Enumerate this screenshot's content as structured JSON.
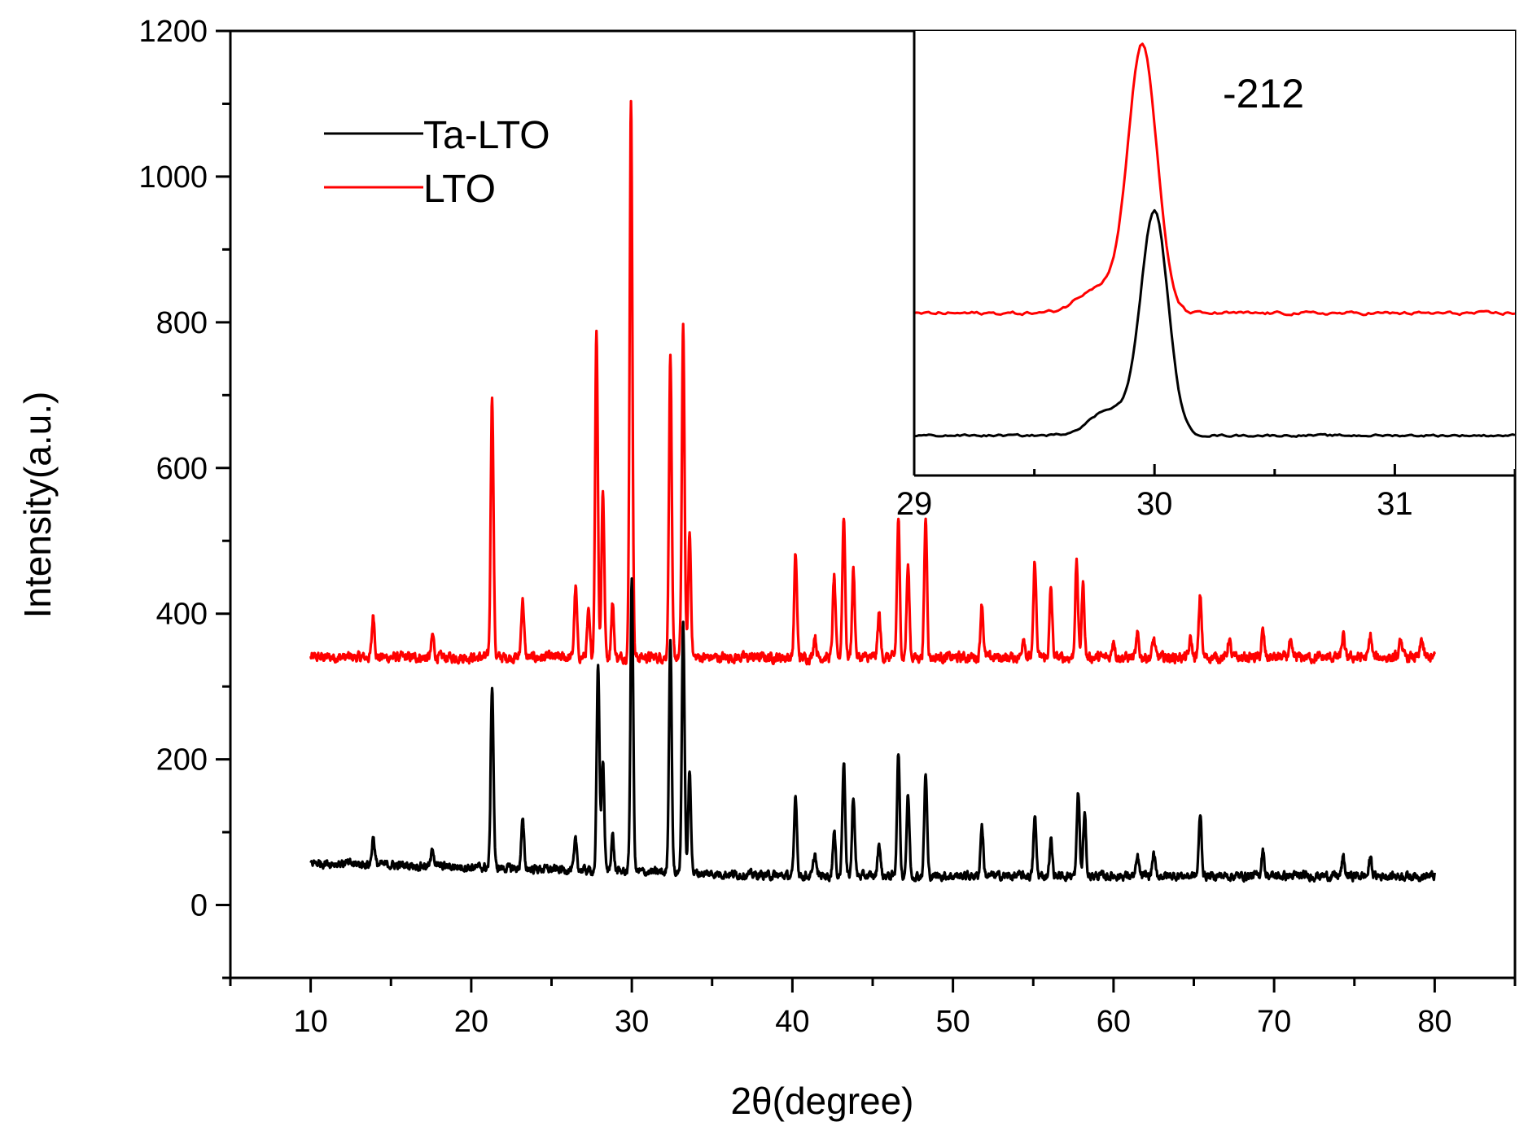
{
  "chart_data": [
    {
      "id": "main",
      "type": "line",
      "title": "",
      "xlabel": "2θ(degree)",
      "ylabel": "Intensity(a.u.)",
      "xlim": [
        5,
        85
      ],
      "ylim": [
        -100,
        1200
      ],
      "xticks": [
        10,
        20,
        30,
        40,
        50,
        60,
        70,
        80
      ],
      "yticks": [
        0,
        200,
        400,
        600,
        800,
        1000,
        1200
      ],
      "grid": false,
      "legend_position": "top-left",
      "series": [
        {
          "name": "Ta-LTO",
          "color": "#000000",
          "x_range": [
            10,
            80
          ],
          "baseline": 40,
          "noise": 10,
          "peaks": [
            [
              13.9,
              38
            ],
            [
              17.6,
              25
            ],
            [
              21.3,
              250
            ],
            [
              23.2,
              65
            ],
            [
              26.5,
              40
            ],
            [
              27.9,
              280
            ],
            [
              28.2,
              150
            ],
            [
              28.8,
              50
            ],
            [
              30.0,
              400
            ],
            [
              32.4,
              325
            ],
            [
              33.2,
              345
            ],
            [
              33.6,
              140
            ],
            [
              40.2,
              110
            ],
            [
              41.4,
              30
            ],
            [
              42.6,
              60
            ],
            [
              43.2,
              160
            ],
            [
              43.8,
              110
            ],
            [
              45.4,
              45
            ],
            [
              46.6,
              170
            ],
            [
              47.2,
              110
            ],
            [
              48.3,
              140
            ],
            [
              51.8,
              70
            ],
            [
              55.1,
              80
            ],
            [
              56.1,
              50
            ],
            [
              57.8,
              115
            ],
            [
              58.2,
              85
            ],
            [
              61.5,
              25
            ],
            [
              62.5,
              30
            ],
            [
              65.4,
              85
            ],
            [
              69.3,
              35
            ],
            [
              74.3,
              25
            ],
            [
              76.0,
              25
            ]
          ]
        },
        {
          "name": "LTO",
          "color": "#ff0000",
          "x_range": [
            10,
            80
          ],
          "baseline": 340,
          "noise": 12,
          "peaks": [
            [
              13.9,
              58
            ],
            [
              17.6,
              30
            ],
            [
              21.3,
              360
            ],
            [
              23.2,
              80
            ],
            [
              26.5,
              95
            ],
            [
              27.3,
              60
            ],
            [
              27.8,
              450
            ],
            [
              28.2,
              230
            ],
            [
              28.8,
              75
            ],
            [
              29.95,
              770
            ],
            [
              32.4,
              415
            ],
            [
              33.2,
              455
            ],
            [
              33.6,
              170
            ],
            [
              40.2,
              140
            ],
            [
              41.4,
              30
            ],
            [
              42.6,
              110
            ],
            [
              43.2,
              195
            ],
            [
              43.8,
              120
            ],
            [
              45.4,
              60
            ],
            [
              46.6,
              190
            ],
            [
              47.2,
              125
            ],
            [
              48.3,
              190
            ],
            [
              51.8,
              75
            ],
            [
              54.4,
              30
            ],
            [
              55.1,
              130
            ],
            [
              56.1,
              95
            ],
            [
              57.7,
              130
            ],
            [
              58.1,
              100
            ],
            [
              60.0,
              25
            ],
            [
              61.5,
              30
            ],
            [
              62.5,
              25
            ],
            [
              64.8,
              25
            ],
            [
              65.4,
              85
            ],
            [
              67.2,
              25
            ],
            [
              69.3,
              35
            ],
            [
              71.0,
              20
            ],
            [
              74.3,
              30
            ],
            [
              76.0,
              30
            ],
            [
              77.9,
              25
            ],
            [
              79.2,
              25
            ]
          ]
        }
      ],
      "legend": [
        {
          "label": "Ta-LTO",
          "color": "#000000"
        },
        {
          "label": "LTO",
          "color": "#ff0000"
        }
      ]
    },
    {
      "id": "inset",
      "type": "line",
      "annotation": "-212",
      "xlim": [
        29,
        31.5
      ],
      "ylim": [
        0,
        1
      ],
      "xticks": [
        29,
        30,
        31
      ],
      "yticks": [],
      "series": [
        {
          "name": "LTO",
          "color": "#ff0000",
          "baseline": 0.365,
          "peak_center": 29.95,
          "peak_height": 0.6,
          "peak_width": 0.085,
          "noise": 0.006
        },
        {
          "name": "Ta-LTO",
          "color": "#000000",
          "baseline": 0.09,
          "peak_center": 30.0,
          "peak_height": 0.5,
          "peak_width": 0.08,
          "noise": 0.004
        }
      ]
    }
  ]
}
